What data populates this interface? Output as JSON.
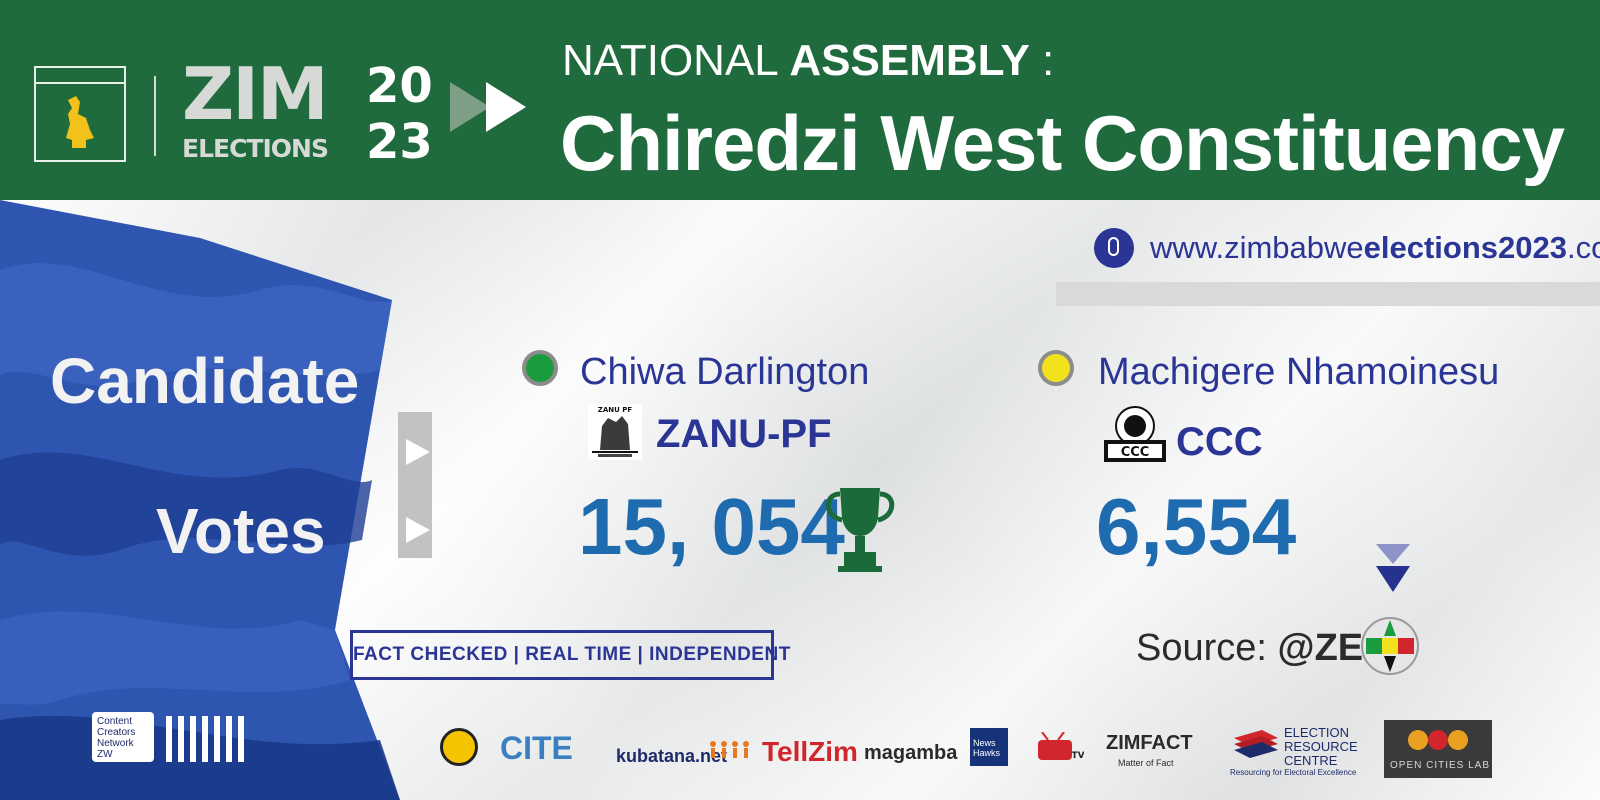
{
  "header": {
    "brand_zim": "ZIM",
    "brand_elections": "ELECTIONS",
    "year_top": "20",
    "year_bottom": "23",
    "title_prefix": "NATIONAL ",
    "title_bold": "ASSEMBLY",
    "title_suffix": " :",
    "constituency": "Chiredzi West Constituency"
  },
  "website": {
    "prefix": "www.zimbabwe",
    "bold": "elections2023",
    "suffix": ".co.zw"
  },
  "labels": {
    "candidate": "Candidate",
    "votes": "Votes"
  },
  "candidates": [
    {
      "name": "Chiwa Darlington",
      "party": "ZANU-PF",
      "votes": "15, 054",
      "color": "#1a9c3e",
      "winner": true
    },
    {
      "name": "Machigere Nhamoinesu",
      "party": "CCC",
      "votes": "6,554",
      "color": "#f2e21b",
      "winner": false
    }
  ],
  "tagline": "FACT CHECKED | REAL TIME | INDEPENDENT",
  "source": {
    "prefix": "Source: ",
    "handle": "@ZEC"
  },
  "footer": {
    "ccn_lines": [
      "Content",
      "Creators",
      "Network",
      "ZW"
    ],
    "partners": {
      "cite": "CITE",
      "kubatana": "kubatana.net",
      "tellzim": "TellZim",
      "magamba": "magamba",
      "newshawks": "News Hawks",
      "zimfact": "ZIMFACT",
      "zimfact_sub": "Matter of Fact",
      "erc": [
        "ELECTION",
        "RESOURCE",
        "CENTRE"
      ],
      "erc_sub": "Resourcing for Electoral Excellence",
      "ocl": "OPEN CITIES LAB"
    }
  },
  "colors": {
    "header_green": "#1f6b3d",
    "accent_blue": "#2a3596",
    "votes_blue": "#1f6bb0"
  }
}
